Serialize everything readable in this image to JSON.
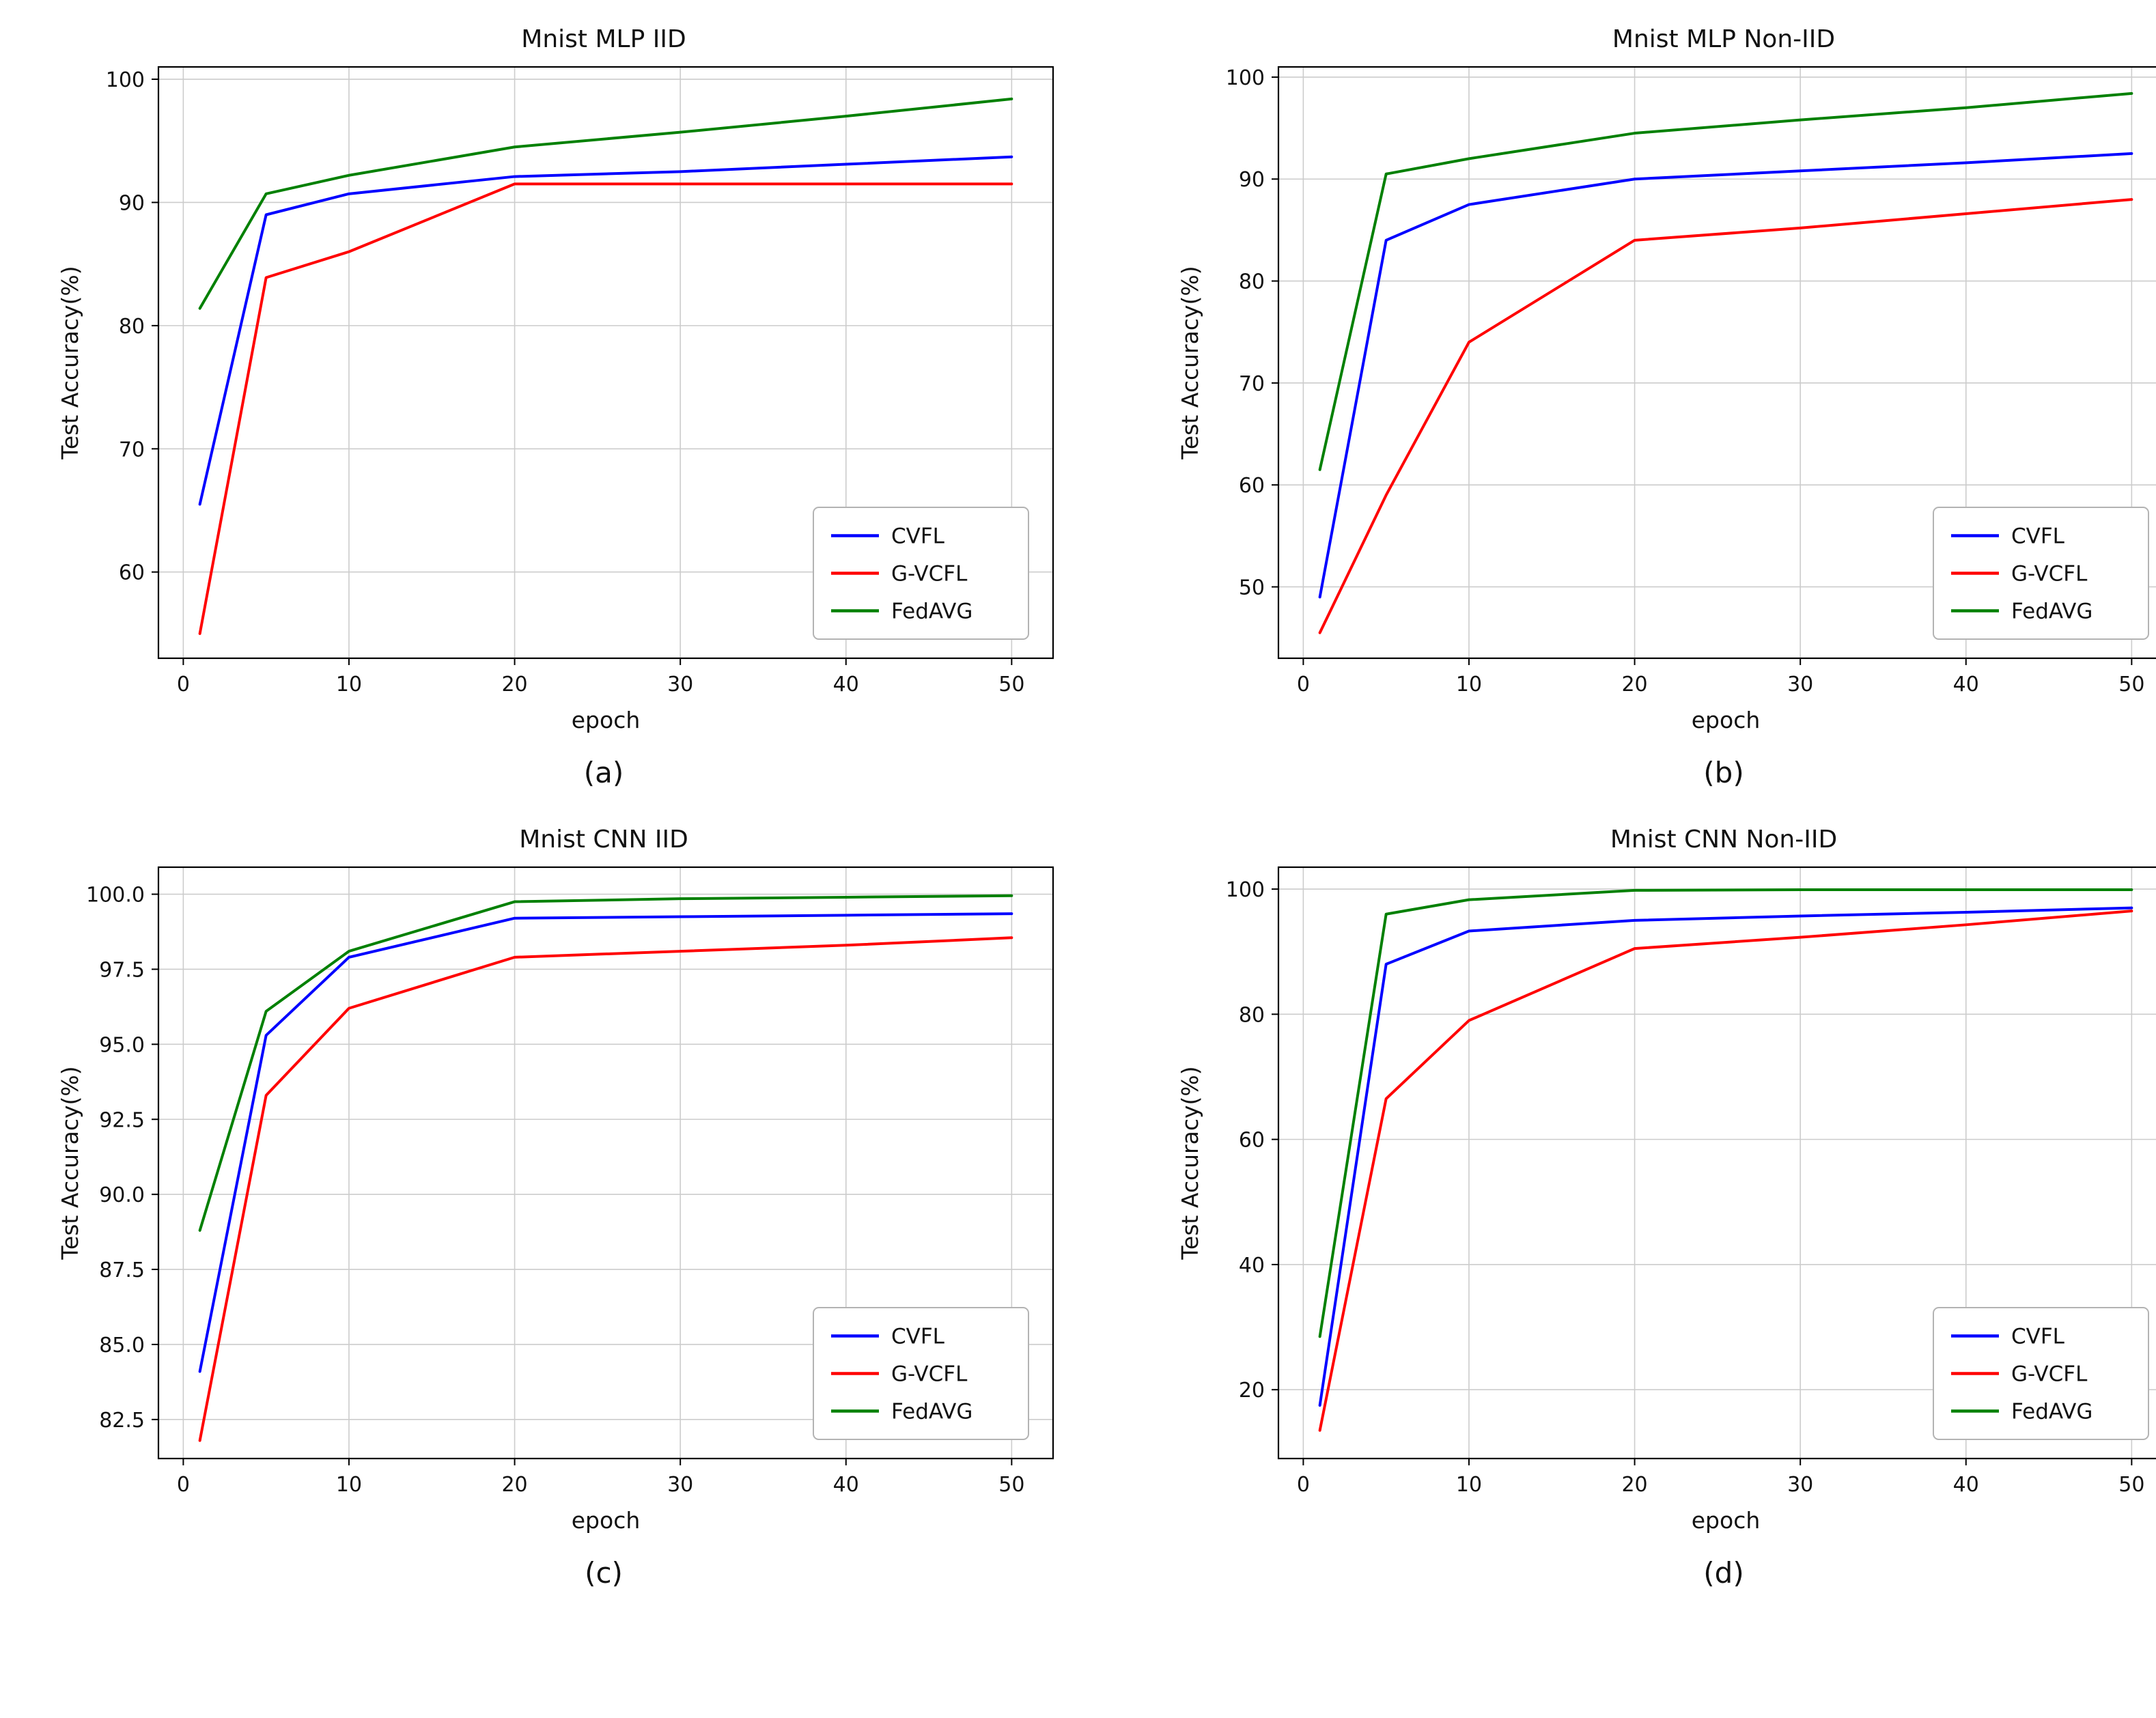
{
  "figure": {
    "background": "#ffffff",
    "grid_color": "#cccccc",
    "spine_color": "#000000",
    "legend_border_color": "#b3b3b3",
    "series_colors": {
      "CVFL": "#0000ff",
      "G-VCFL": "#ff0000",
      "FedAVG": "#008000"
    }
  },
  "chart_data": [
    {
      "id": "a",
      "type": "line",
      "title": "Mnist MLP IID",
      "caption": "(a)",
      "xlabel": "epoch",
      "ylabel": "Test Accuracy(%)",
      "grid": true,
      "legend_position": "lower right",
      "x": [
        1,
        5,
        10,
        20,
        30,
        40,
        50
      ],
      "xlim": [
        -1.5,
        52.5
      ],
      "ylim": [
        53,
        101
      ],
      "xtick_values": [
        0,
        10,
        20,
        30,
        40,
        50
      ],
      "xtick_labels": [
        "0",
        "10",
        "20",
        "30",
        "40",
        "50"
      ],
      "ytick_values": [
        60,
        70,
        80,
        90,
        100
      ],
      "ytick_labels": [
        "60",
        "70",
        "80",
        "90",
        "100"
      ],
      "series": [
        {
          "name": "CVFL",
          "color": "#0000ff",
          "values": [
            65.5,
            89.0,
            90.7,
            92.1,
            92.5,
            93.1,
            93.7
          ]
        },
        {
          "name": "G-VCFL",
          "color": "#ff0000",
          "values": [
            55.0,
            83.9,
            86.0,
            91.5,
            91.5,
            91.5,
            91.5
          ]
        },
        {
          "name": "FedAVG",
          "color": "#008000",
          "values": [
            81.4,
            90.7,
            92.2,
            94.5,
            95.7,
            97.0,
            98.4
          ]
        }
      ]
    },
    {
      "id": "b",
      "type": "line",
      "title": "Mnist MLP Non-IID",
      "caption": "(b)",
      "xlabel": "epoch",
      "ylabel": "Test Accuracy(%)",
      "grid": true,
      "legend_position": "lower right",
      "x": [
        1,
        5,
        10,
        20,
        30,
        40,
        50
      ],
      "xlim": [
        -1.5,
        52.5
      ],
      "ylim": [
        43,
        101
      ],
      "xtick_values": [
        0,
        10,
        20,
        30,
        40,
        50
      ],
      "xtick_labels": [
        "0",
        "10",
        "20",
        "30",
        "40",
        "50"
      ],
      "ytick_values": [
        50,
        60,
        70,
        80,
        90,
        100
      ],
      "ytick_labels": [
        "50",
        "60",
        "70",
        "80",
        "90",
        "100"
      ],
      "series": [
        {
          "name": "CVFL",
          "color": "#0000ff",
          "values": [
            49.0,
            84.0,
            87.5,
            90.0,
            90.8,
            91.6,
            92.5
          ]
        },
        {
          "name": "G-VCFL",
          "color": "#ff0000",
          "values": [
            45.5,
            59.0,
            74.0,
            84.0,
            85.2,
            86.6,
            88.0
          ]
        },
        {
          "name": "FedAVG",
          "color": "#008000",
          "values": [
            61.5,
            90.5,
            92.0,
            94.5,
            95.8,
            97.0,
            98.4
          ]
        }
      ]
    },
    {
      "id": "c",
      "type": "line",
      "title": "Mnist CNN IID",
      "caption": "(c)",
      "xlabel": "epoch",
      "ylabel": "Test Accuracy(%)",
      "grid": true,
      "legend_position": "lower right",
      "x": [
        1,
        5,
        10,
        20,
        30,
        40,
        50
      ],
      "xlim": [
        -1.5,
        52.5
      ],
      "ylim": [
        81.2,
        100.9
      ],
      "xtick_values": [
        0,
        10,
        20,
        30,
        40,
        50
      ],
      "xtick_labels": [
        "0",
        "10",
        "20",
        "30",
        "40",
        "50"
      ],
      "ytick_values": [
        82.5,
        85.0,
        87.5,
        90.0,
        92.5,
        95.0,
        97.5,
        100.0
      ],
      "ytick_labels": [
        "82.5",
        "85.0",
        "87.5",
        "90.0",
        "92.5",
        "95.0",
        "97.5",
        "100.0"
      ],
      "series": [
        {
          "name": "CVFL",
          "color": "#0000ff",
          "values": [
            84.1,
            95.3,
            97.9,
            99.2,
            99.25,
            99.3,
            99.35
          ]
        },
        {
          "name": "G-VCFL",
          "color": "#ff0000",
          "values": [
            81.8,
            93.3,
            96.2,
            97.9,
            98.1,
            98.3,
            98.55
          ]
        },
        {
          "name": "FedAVG",
          "color": "#008000",
          "values": [
            88.8,
            96.1,
            98.1,
            99.75,
            99.85,
            99.9,
            99.95
          ]
        }
      ]
    },
    {
      "id": "d",
      "type": "line",
      "title": "Mnist CNN Non-IID",
      "caption": "(d)",
      "xlabel": "epoch",
      "ylabel": "Test Accuracy(%)",
      "grid": true,
      "legend_position": "lower right",
      "x": [
        1,
        5,
        10,
        20,
        30,
        40,
        50
      ],
      "xlim": [
        -1.5,
        52.5
      ],
      "ylim": [
        9,
        103.5
      ],
      "xtick_values": [
        0,
        10,
        20,
        30,
        40,
        50
      ],
      "xtick_labels": [
        "0",
        "10",
        "20",
        "30",
        "40",
        "50"
      ],
      "ytick_values": [
        20,
        40,
        60,
        80,
        100
      ],
      "ytick_labels": [
        "20",
        "40",
        "60",
        "80",
        "100"
      ],
      "series": [
        {
          "name": "CVFL",
          "color": "#0000ff",
          "values": [
            17.5,
            88.0,
            93.3,
            95.0,
            95.7,
            96.3,
            97.0
          ]
        },
        {
          "name": "G-VCFL",
          "color": "#ff0000",
          "values": [
            13.5,
            66.5,
            79.0,
            90.5,
            92.3,
            94.3,
            96.5
          ]
        },
        {
          "name": "FedAVG",
          "color": "#008000",
          "values": [
            28.5,
            96.0,
            98.3,
            99.8,
            99.9,
            99.9,
            99.9
          ]
        }
      ]
    }
  ]
}
